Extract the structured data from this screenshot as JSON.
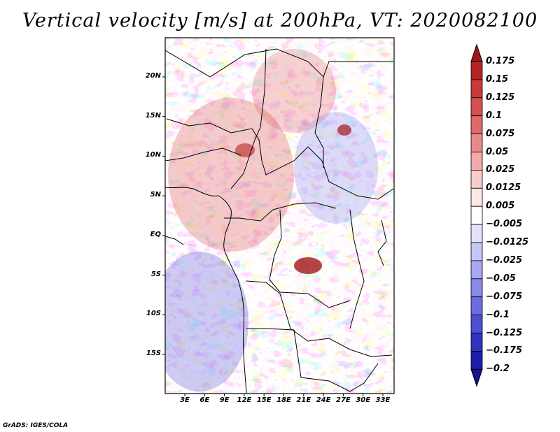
{
  "title": "Vertical velocity [m/s] at 200hPa, VT: 2020082100",
  "footer": "GrADS: IGES/COLA",
  "map": {
    "variable": "Vertical velocity",
    "units": "m/s",
    "level": "200hPa",
    "valid_time": "2020082100",
    "lat_labels": [
      "20N",
      "15N",
      "10N",
      "5N",
      "EQ",
      "5S",
      "10S",
      "15S"
    ],
    "lon_labels": [
      "3E",
      "6E",
      "9E",
      "12E",
      "15E",
      "18E",
      "21E",
      "24E",
      "27E",
      "30E",
      "33E"
    ]
  },
  "colorbar": {
    "labels": [
      "0.175",
      "0.15",
      "0.125",
      "0.1",
      "0.075",
      "0.05",
      "0.025",
      "0.0125",
      "0.005",
      "−0.005",
      "−0.0125",
      "−0.025",
      "−0.05",
      "−0.075",
      "−0.1",
      "−0.125",
      "−0.175",
      "−0.2"
    ],
    "colors": [
      "#a01818",
      "#b52424",
      "#c83a3a",
      "#d65050",
      "#e06a6a",
      "#e98a8a",
      "#f2aaaa",
      "#f9cccc",
      "#fde6e6",
      "#ffffff",
      "#e2e2fb",
      "#c6c6f6",
      "#a8a8f0",
      "#8a8aea",
      "#6c6ce0",
      "#4e4ed2",
      "#3232c0",
      "#1e1eaa",
      "#141490"
    ]
  }
}
